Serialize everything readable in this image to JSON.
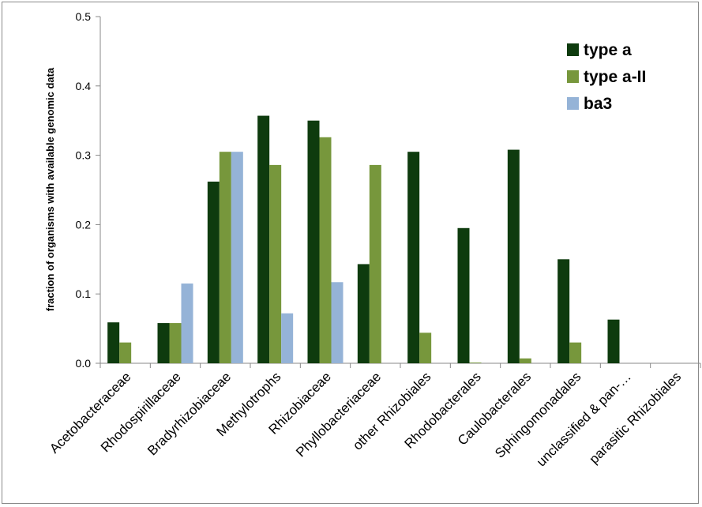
{
  "chart_data": {
    "type": "bar",
    "title": "",
    "xlabel": "",
    "ylabel": "fraction of organisms with available genomic data",
    "ylim": [
      0,
      0.5
    ],
    "yticks": [
      "0.0",
      "0.1",
      "0.2",
      "0.3",
      "0.4",
      "0.5"
    ],
    "grid": false,
    "legend_position": "top-right",
    "categories": [
      "Acetobacteraceae",
      "Rhodospirillaceae",
      "Bradyrhizobiaceae",
      "Methylotrophs",
      "Rhizobiaceae",
      "Phyllobacteriaceae",
      "other Rhizobiales",
      "Rhodobacterales",
      "Caulobacterales",
      "Sphingomonadales",
      "unclassified & pan-…",
      "parasitic Rhizobiales"
    ],
    "series": [
      {
        "name": "type a",
        "color": "#0e3b0e",
        "values": [
          0.059,
          0.058,
          0.262,
          0.357,
          0.35,
          0.143,
          0.305,
          0.195,
          0.308,
          0.15,
          0.063,
          0
        ]
      },
      {
        "name": "type a-II",
        "color": "#77973c",
        "values": [
          0.03,
          0.058,
          0.305,
          0.286,
          0.326,
          0.286,
          0.044,
          0.001,
          0.007,
          0.03,
          0,
          0
        ]
      },
      {
        "name": "ba3",
        "color": "#95b3d7",
        "values": [
          0,
          0.115,
          0.305,
          0.072,
          0.117,
          0,
          0,
          0,
          0,
          0,
          0,
          0
        ]
      }
    ]
  }
}
